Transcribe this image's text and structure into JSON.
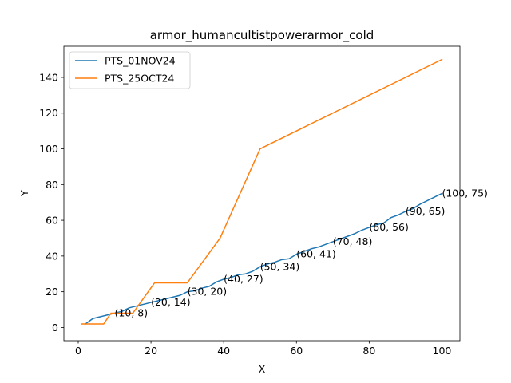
{
  "chart_data": {
    "type": "line",
    "title": "armor_humancultistpowerarmor_cold",
    "xlabel": "X",
    "ylabel": "Y",
    "xlim": [
      -3.95,
      104.95
    ],
    "ylim": [
      -7.4,
      157.4
    ],
    "xticks": [
      0,
      20,
      40,
      60,
      80,
      100
    ],
    "yticks": [
      0,
      20,
      40,
      60,
      80,
      100,
      120,
      140
    ],
    "grid": false,
    "legend_position": "top-left",
    "series": [
      {
        "name": "PTS_01NOV24",
        "color": "#1f77b4",
        "x": [
          2,
          4,
          6,
          8,
          10,
          12,
          14,
          16,
          18,
          20,
          22,
          24,
          26,
          28,
          30,
          32,
          34,
          36,
          38,
          40,
          42,
          44,
          46,
          48,
          50,
          52,
          54,
          56,
          58,
          60,
          62,
          64,
          66,
          68,
          70,
          72,
          74,
          76,
          78,
          80,
          82,
          84,
          86,
          88,
          90,
          92,
          94,
          96,
          98,
          100
        ],
        "values": [
          2,
          5,
          6,
          7,
          8,
          9,
          11,
          12,
          13,
          14,
          15,
          16,
          17,
          18,
          20,
          20.5,
          22,
          23,
          25.5,
          27,
          28,
          29.5,
          30,
          31.5,
          34,
          35.5,
          36.5,
          38,
          38.5,
          41,
          42.5,
          44,
          45,
          46.5,
          48,
          49.5,
          51,
          52.5,
          54.5,
          56,
          57.5,
          58.5,
          61.5,
          63,
          65,
          66.5,
          69,
          71,
          73,
          75
        ]
      },
      {
        "name": "PTS_25OCT24",
        "color": "#ff7f0e",
        "x": [
          1,
          7,
          9,
          15,
          21,
          30,
          39,
          50,
          100
        ],
        "values": [
          2,
          2,
          8,
          8,
          25,
          25,
          50,
          100,
          150
        ]
      }
    ],
    "annotations": [
      {
        "x": 10,
        "y": 8,
        "text": "(10, 8)"
      },
      {
        "x": 20,
        "y": 14,
        "text": "(20, 14)"
      },
      {
        "x": 30,
        "y": 20,
        "text": "(30, 20)"
      },
      {
        "x": 40,
        "y": 27,
        "text": "(40, 27)"
      },
      {
        "x": 50,
        "y": 34,
        "text": "(50, 34)"
      },
      {
        "x": 60,
        "y": 41,
        "text": "(60, 41)"
      },
      {
        "x": 70,
        "y": 48,
        "text": "(70, 48)"
      },
      {
        "x": 80,
        "y": 56,
        "text": "(80, 56)"
      },
      {
        "x": 90,
        "y": 65,
        "text": "(90, 65)"
      },
      {
        "x": 100,
        "y": 75,
        "text": "(100, 75)"
      }
    ]
  }
}
